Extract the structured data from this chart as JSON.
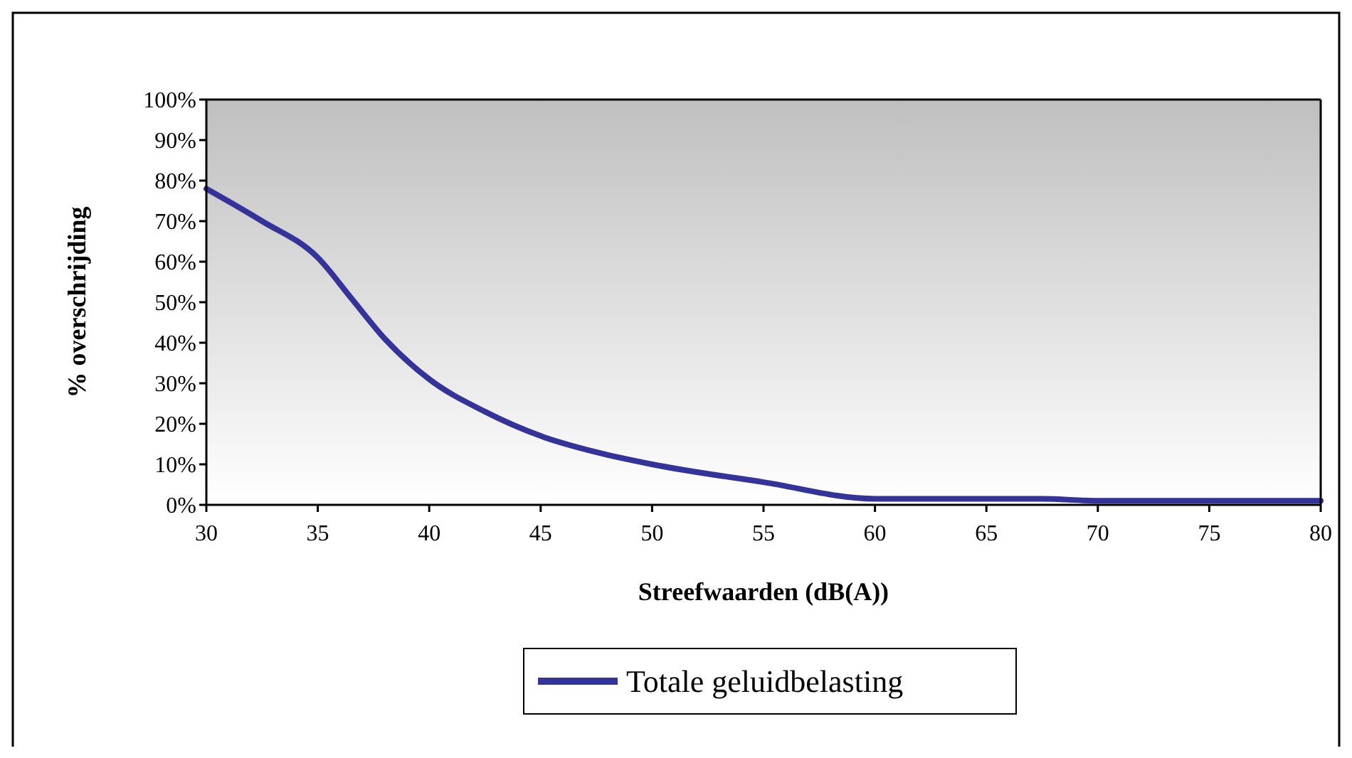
{
  "chart_data": {
    "type": "line",
    "xlabel": "Streefwaarden (dB(A))",
    "ylabel": "% overschrijding",
    "xlim": [
      30,
      80
    ],
    "xticks": [
      30,
      35,
      40,
      45,
      50,
      55,
      60,
      65,
      70,
      75,
      80
    ],
    "ylim": [
      0,
      100
    ],
    "yticks": [
      {
        "value": 0,
        "label": "0%"
      },
      {
        "value": 10,
        "label": "10%"
      },
      {
        "value": 20,
        "label": "20%"
      },
      {
        "value": 30,
        "label": "30%"
      },
      {
        "value": 40,
        "label": "40%"
      },
      {
        "value": 50,
        "label": "50%"
      },
      {
        "value": 60,
        "label": "60%"
      },
      {
        "value": 70,
        "label": "70%"
      },
      {
        "value": 80,
        "label": "80%"
      },
      {
        "value": 90,
        "label": "90%"
      },
      {
        "value": 100,
        "label": "100%"
      }
    ],
    "legend": "bottom",
    "grid": false,
    "series": [
      {
        "name": "Totale geluidbelasting",
        "color": "#333399",
        "x": [
          30,
          32.5,
          35,
          36.5,
          38,
          40,
          42.5,
          45,
          47.5,
          50,
          55,
          60,
          65,
          67.5,
          70,
          75,
          80
        ],
        "values": [
          78,
          70,
          61,
          51,
          41,
          31,
          23,
          17,
          13,
          10,
          5.6,
          1.5,
          1.5,
          1.5,
          1,
          1,
          1
        ]
      }
    ]
  }
}
